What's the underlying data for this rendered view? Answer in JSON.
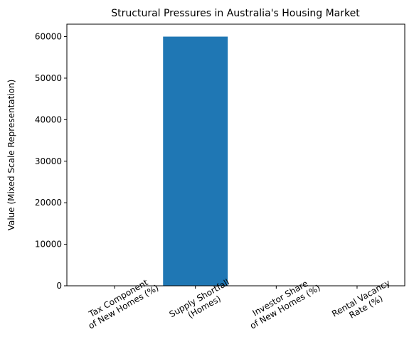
{
  "chart_data": {
    "type": "bar",
    "title": "Structural Pressures in Australia's Housing Market",
    "xlabel": "",
    "ylabel": "Value (Mixed Scale Representation)",
    "categories": [
      [
        "Tax Component",
        "of New Homes (%)"
      ],
      [
        "Supply Shortfall",
        "(Homes)"
      ],
      [
        "Investor Share",
        "of New Homes (%)"
      ],
      [
        "Rental Vacancy",
        "Rate (%)"
      ]
    ],
    "values": [
      44,
      60000,
      35,
      1.5
    ],
    "ylim": [
      0,
      63000
    ],
    "yticks": [
      0,
      10000,
      20000,
      30000,
      40000,
      50000,
      60000
    ],
    "bar_color": "#1f77b4",
    "grid": false
  }
}
